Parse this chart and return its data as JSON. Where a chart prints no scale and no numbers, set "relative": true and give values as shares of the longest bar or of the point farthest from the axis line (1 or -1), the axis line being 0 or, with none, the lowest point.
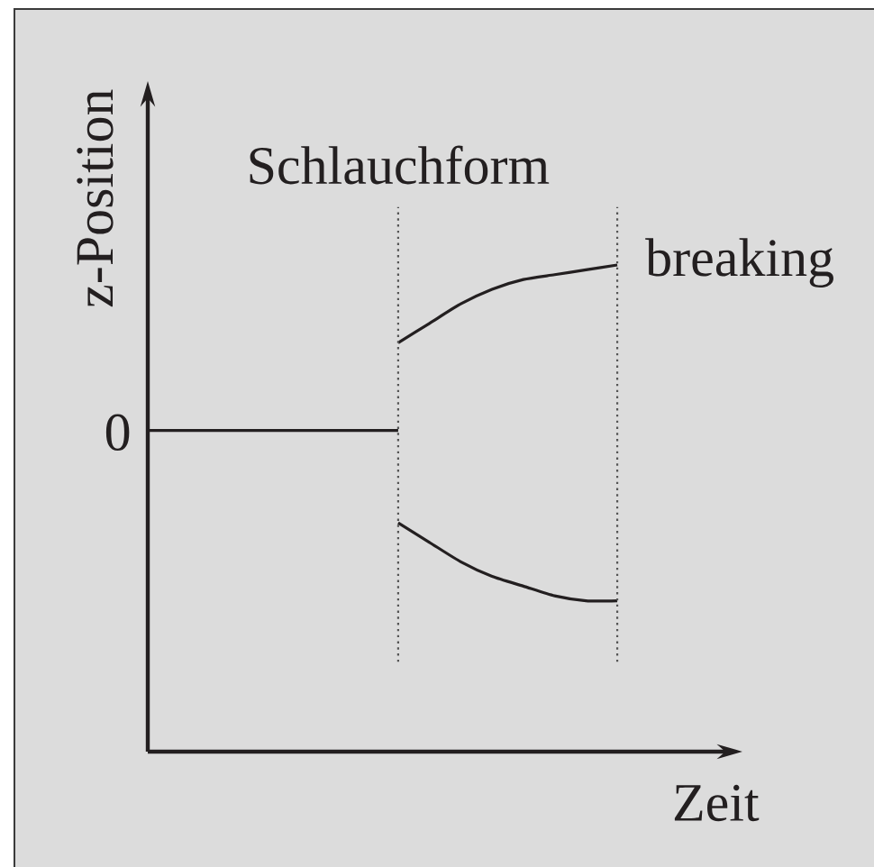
{
  "chart_data": {
    "type": "line",
    "xlabel": "Zeit",
    "ylabel": "z-Position",
    "relative": true,
    "line_style": "solid",
    "categories": [
      null,
      null,
      null,
      null,
      null,
      null,
      null,
      null,
      null,
      null,
      null,
      null,
      null,
      null,
      null,
      null,
      null,
      null,
      null
    ],
    "series": [
      {
        "color": "#231f20",
        "values": [
          0.66,
          0.66,
          0.66,
          0.66,
          0.66,
          0.66,
          0.66,
          0.66,
          0.66,
          null,
          null,
          null,
          null,
          null,
          null,
          null,
          null,
          null,
          null
        ]
      },
      {
        "color": "#231f20",
        "values": [
          null,
          null,
          null,
          null,
          null,
          null,
          null,
          null,
          0.84,
          0.88,
          0.92,
          0.95,
          0.97,
          0.98,
          0.99,
          1,
          null,
          null,
          null
        ]
      },
      {
        "color": "#231f20",
        "values": [
          null,
          null,
          null,
          null,
          null,
          null,
          null,
          null,
          0.47,
          0.43,
          0.39,
          0.36,
          0.34,
          0.32,
          0.31,
          0.31,
          null,
          null,
          null
        ]
      }
    ],
    "annotations": [
      "0",
      "Schlauchform",
      "breaking"
    ]
  }
}
